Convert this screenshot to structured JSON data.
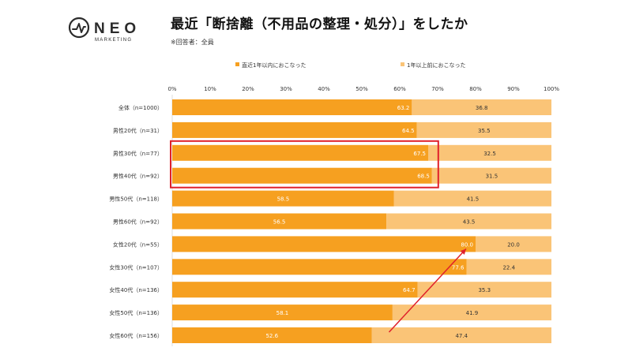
{
  "header": {
    "logo_main": "NEO",
    "logo_sub": "MARKETING",
    "title": "最近「断捨離（不用品の整理・処分）」をしたか",
    "note": "※回答者：全員"
  },
  "colors": {
    "recent": "#F6A020",
    "earlier": "#FAC477",
    "highlight_box": "#E0202A",
    "arrow": "#E0202A",
    "logo": "#2B2B2B"
  },
  "chart_data": {
    "type": "bar",
    "orientation": "horizontal",
    "stacked": true,
    "percent_stacked": true,
    "title": "最近「断捨離（不用品の整理・処分）」をしたか",
    "xlabel": "",
    "ylabel": "",
    "xlim": [
      0,
      100
    ],
    "x_ticks": [
      "0%",
      "10%",
      "20%",
      "30%",
      "40%",
      "50%",
      "60%",
      "70%",
      "80%",
      "90%",
      "100%"
    ],
    "legend_position": "top",
    "grid": false,
    "categories": [
      "全体（n=1000）",
      "男性20代（n=31）",
      "男性30代（n=77）",
      "男性40代（n=92）",
      "男性50代（n=118）",
      "男性60代（n=92）",
      "女性20代（n=55）",
      "女性30代（n=107）",
      "女性40代（n=136）",
      "女性50代（n=136）",
      "女性60代（n=156）"
    ],
    "series": [
      {
        "name": "直近1年以内におこなった",
        "values": [
          63.2,
          64.5,
          67.5,
          68.5,
          58.5,
          56.5,
          80.0,
          77.6,
          64.7,
          58.1,
          52.6
        ]
      },
      {
        "name": "1年以上前におこなった",
        "values": [
          36.8,
          35.5,
          32.5,
          31.5,
          41.5,
          43.5,
          20.0,
          22.4,
          35.3,
          41.9,
          47.4
        ]
      }
    ],
    "value_labels": [
      [
        "63.2",
        "64.5",
        "67.5",
        "68.5",
        "58.5",
        "56.5",
        "80.0",
        "77.6",
        "64.7",
        "58.1",
        "52.6"
      ],
      [
        "36.8",
        "35.5",
        "32.5",
        "31.5",
        "41.5",
        "43.5",
        "20.0",
        "22.4",
        "35.3",
        "41.9",
        "47.4"
      ]
    ],
    "annotations": [
      {
        "type": "box",
        "categories": [
          "男性30代（n=77）",
          "男性40代（n=92）"
        ]
      },
      {
        "type": "arrow",
        "from": {
          "category": "女性60代（n=156）",
          "value": 52.6
        },
        "to": {
          "category": "女性20代（n=55）",
          "value": 80.0
        }
      }
    ]
  }
}
